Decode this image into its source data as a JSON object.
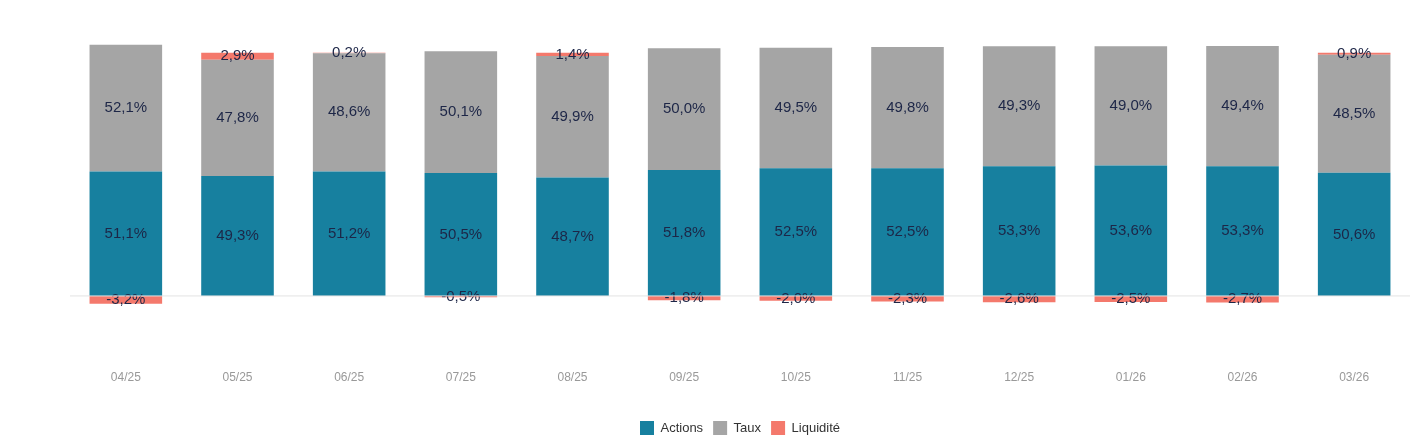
{
  "chart_data": {
    "type": "bar",
    "stacked": true,
    "categories": [
      "04/25",
      "05/25",
      "06/25",
      "07/25",
      "08/25",
      "09/25",
      "10/25",
      "11/25",
      "12/25",
      "01/26",
      "02/26",
      "03/26"
    ],
    "series": [
      {
        "name": "Actions",
        "color": "#17809f",
        "values": [
          51.1,
          49.3,
          51.2,
          50.5,
          48.7,
          51.8,
          52.5,
          52.5,
          53.3,
          53.6,
          53.3,
          50.6
        ],
        "value_labels": [
          "51,1%",
          "49,3%",
          "51,2%",
          "50,5%",
          "48,7%",
          "51,8%",
          "52,5%",
          "52,5%",
          "53,3%",
          "53,6%",
          "53,3%",
          "50,6%"
        ]
      },
      {
        "name": "Taux",
        "color": "#a5a5a5",
        "values": [
          52.1,
          47.8,
          48.6,
          50.1,
          49.9,
          50.0,
          49.5,
          49.8,
          49.3,
          49.0,
          49.4,
          48.5
        ],
        "value_labels": [
          "52,1%",
          "47,8%",
          "48,6%",
          "50,1%",
          "49,9%",
          "50,0%",
          "49,5%",
          "49,8%",
          "49,3%",
          "49,0%",
          "49,4%",
          "48,5%"
        ]
      },
      {
        "name": "Liquidité",
        "color": "#f4796c",
        "values": [
          -3.2,
          2.9,
          0.2,
          -0.5,
          1.4,
          -1.8,
          -2.0,
          -2.3,
          -2.6,
          -2.5,
          -2.7,
          0.9
        ],
        "value_labels": [
          "-3,2%",
          "2,9%",
          "0,2%",
          "-0,5%",
          "1,4%",
          "-1,8%",
          "-2,0%",
          "-2,3%",
          "-2,6%",
          "-2,5%",
          "-2,7%",
          "0,9%"
        ]
      }
    ],
    "legend": "bottom",
    "grid": false,
    "tick_labels": "x"
  }
}
